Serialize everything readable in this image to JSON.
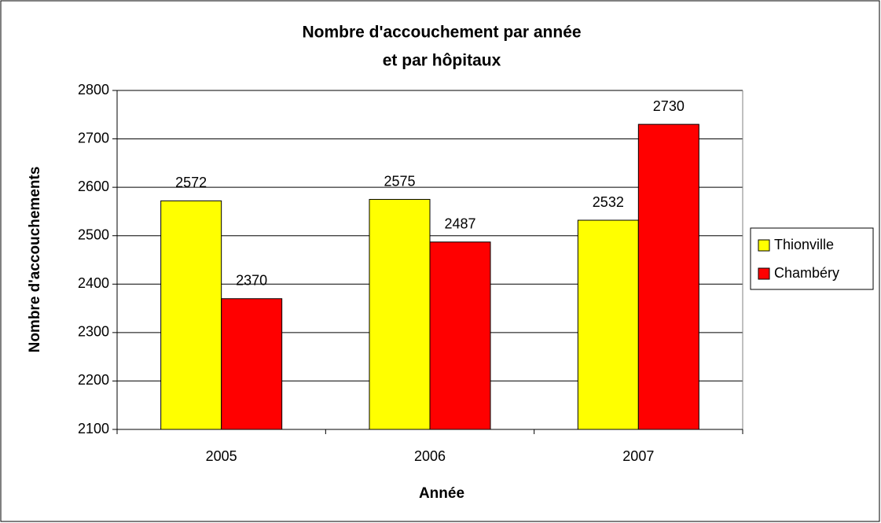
{
  "chart_data": {
    "type": "bar",
    "title": [
      "Nombre d'accouchement par année",
      "et par hôpitaux"
    ],
    "x_label": "Année",
    "y_label": "Nombre d'accouchements",
    "categories": [
      "2005",
      "2006",
      "2007"
    ],
    "series": [
      {
        "name": "Thionville",
        "color": "#ffff00",
        "values": [
          2572,
          2575,
          2532
        ]
      },
      {
        "name": "Chambéry",
        "color": "#ff0000",
        "values": [
          2370,
          2487,
          2730
        ]
      }
    ],
    "ylim": [
      2100,
      2800
    ],
    "yticks": [
      2100,
      2200,
      2300,
      2400,
      2500,
      2600,
      2700,
      2800
    ],
    "grid": true,
    "legend": "right"
  }
}
